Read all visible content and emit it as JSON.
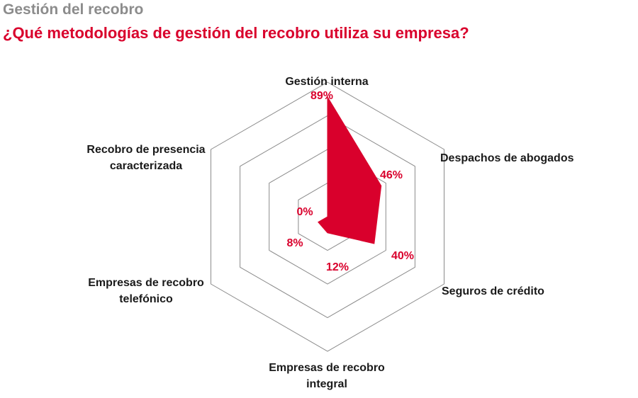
{
  "title": "Gestión del recobro",
  "subtitle": "¿Qué metodologías de gestión del recobro utiliza su empresa?",
  "colors": {
    "accent": "#d9002c",
    "title": "#8c8c8c",
    "grid": "#8a8a8a",
    "text": "#1a1a1a"
  },
  "chart_data": {
    "type": "radar",
    "title": "¿Qué metodologías de gestión del recobro utiliza su empresa?",
    "rmax": 100,
    "grid_levels": [
      25,
      50,
      75,
      100
    ],
    "unit": "%",
    "categories": [
      {
        "label_lines": [
          "Gestión interna"
        ],
        "value": 89,
        "value_label": "89%"
      },
      {
        "label_lines": [
          "Despachos de abogados"
        ],
        "value": 46,
        "value_label": "46%"
      },
      {
        "label_lines": [
          "Seguros de crédito"
        ],
        "value": 40,
        "value_label": "40%"
      },
      {
        "label_lines": [
          "Empresas de recobro",
          "integral"
        ],
        "value": 12,
        "value_label": "12%"
      },
      {
        "label_lines": [
          "Empresas de recobro",
          "telefónico"
        ],
        "value": 8,
        "value_label": "8%"
      },
      {
        "label_lines": [
          "Recobro de presencia",
          "caracterizada"
        ],
        "value": 0,
        "value_label": "0%"
      }
    ]
  }
}
